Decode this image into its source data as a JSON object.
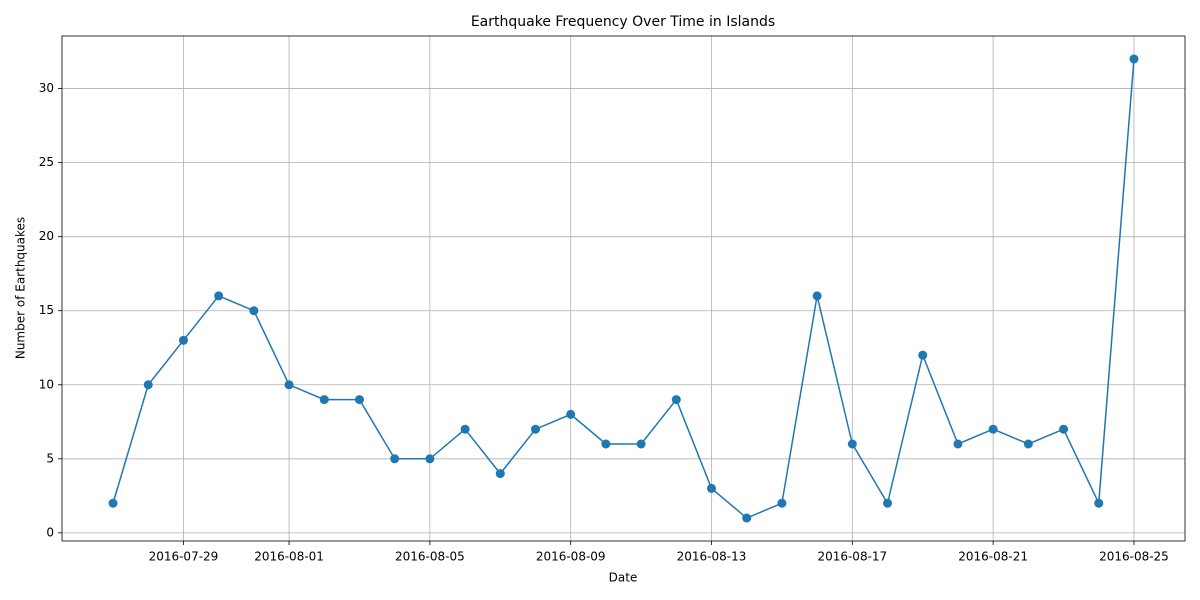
{
  "chart_data": {
    "type": "line",
    "title": "Earthquake Frequency Over Time in Islands",
    "xlabel": "Date",
    "ylabel": "Number of Earthquakes",
    "x": [
      "2016-07-27",
      "2016-07-28",
      "2016-07-29",
      "2016-07-30",
      "2016-07-31",
      "2016-08-01",
      "2016-08-02",
      "2016-08-03",
      "2016-08-04",
      "2016-08-05",
      "2016-08-06",
      "2016-08-07",
      "2016-08-08",
      "2016-08-09",
      "2016-08-10",
      "2016-08-11",
      "2016-08-12",
      "2016-08-13",
      "2016-08-14",
      "2016-08-15",
      "2016-08-16",
      "2016-08-17",
      "2016-08-18",
      "2016-08-19",
      "2016-08-20",
      "2016-08-21",
      "2016-08-22",
      "2016-08-23",
      "2016-08-24",
      "2016-08-25"
    ],
    "series": [
      {
        "name": "Earthquakes",
        "color": "#1f77b4",
        "values": [
          2,
          10,
          13,
          16,
          15,
          10,
          9,
          9,
          5,
          5,
          7,
          4,
          7,
          8,
          6,
          6,
          9,
          3,
          1,
          2,
          16,
          6,
          2,
          12,
          6,
          7,
          6,
          7,
          2,
          32
        ]
      }
    ],
    "xlim": [
      "2016-07-25T13:12:00Z",
      "2016-08-26T10:48:00Z"
    ],
    "xticks": [
      "2016-07-29",
      "2016-08-01",
      "2016-08-05",
      "2016-08-09",
      "2016-08-13",
      "2016-08-17",
      "2016-08-21",
      "2016-08-25"
    ],
    "ylim": [
      -0.55,
      33.55
    ],
    "yticks": [
      0,
      5,
      10,
      15,
      20,
      25,
      30
    ],
    "grid": true
  }
}
